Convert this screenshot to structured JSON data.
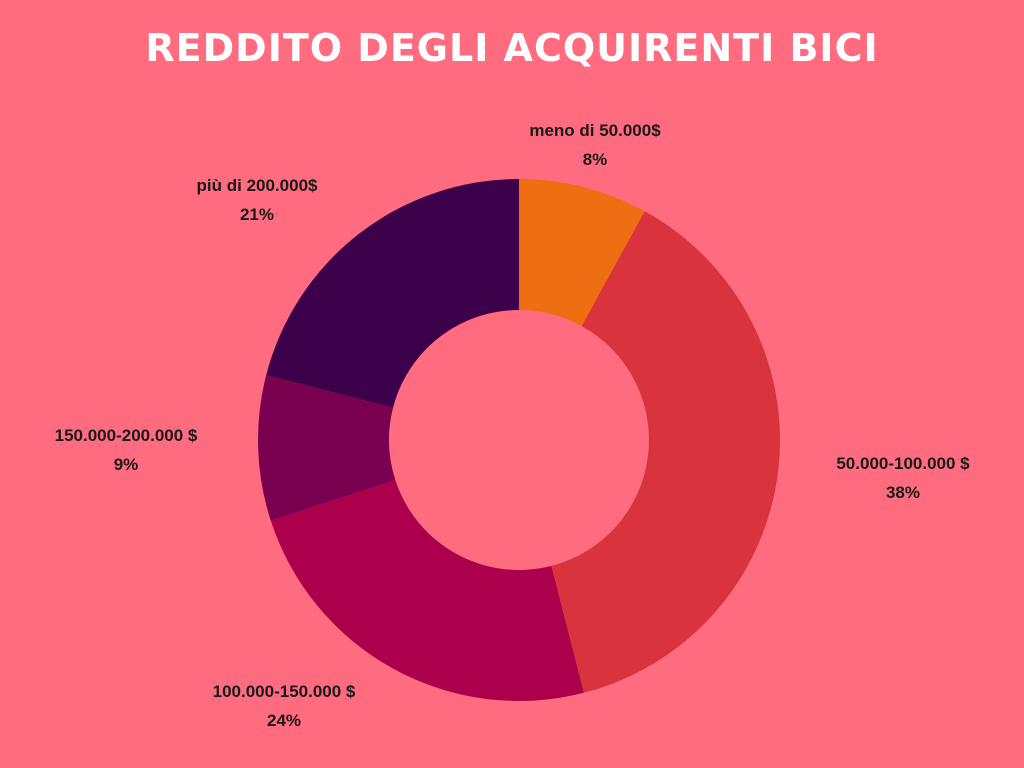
{
  "chart_data": {
    "type": "pie",
    "title": "REDDITO DEGLI ACQUIRENTI BICI",
    "donut": true,
    "slices": [
      {
        "label": "meno di 50.000$",
        "value": 8,
        "value_label": "8%",
        "color": "#ee6e12"
      },
      {
        "label": "50.000-100.000 $",
        "value": 38,
        "value_label": "38%",
        "color": "#d9333d"
      },
      {
        "label": "100.000-150.000 $",
        "value": 24,
        "value_label": "24%",
        "color": "#ac004d"
      },
      {
        "label": "150.000-200.000 $",
        "value": 9,
        "value_label": "9%",
        "color": "#7a0050"
      },
      {
        "label": "più di 200.000$",
        "value": 21,
        "value_label": "21%",
        "color": "#3d004b"
      }
    ]
  }
}
